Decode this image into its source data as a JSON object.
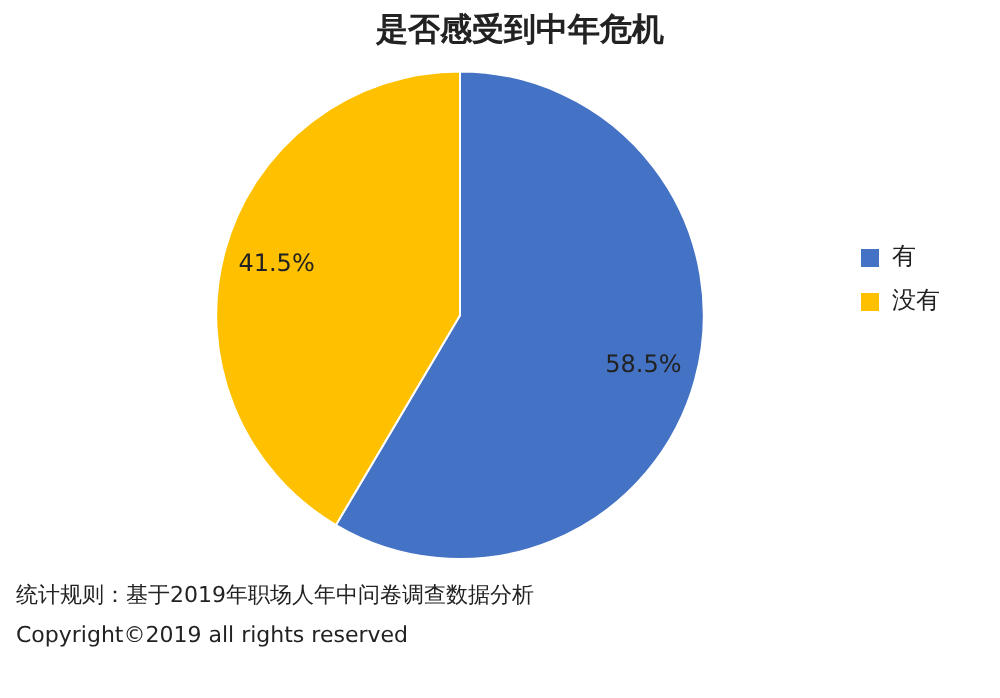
{
  "chart_data": {
    "type": "pie",
    "title": "是否感受到中年危机",
    "categories": [
      "有",
      "没有"
    ],
    "values": [
      58.5,
      41.5
    ],
    "colors": [
      "#4472c4",
      "#ffc000"
    ],
    "value_labels": [
      "58.5%",
      "41.5%"
    ],
    "legend": "right",
    "annotations": [
      "统计规则：基于2019年职场人年中问卷调查数据分析",
      "Copyright©2019 all rights reserved"
    ]
  }
}
